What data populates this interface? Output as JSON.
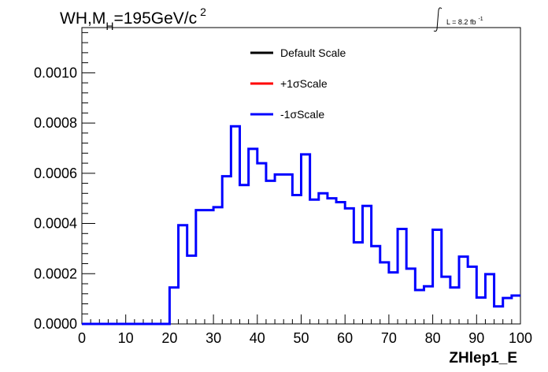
{
  "chart_data": {
    "type": "line",
    "title": {
      "main": "WH,M",
      "sub": "H",
      "rest": "=195GeV/c",
      "sup": "2"
    },
    "luminosity": {
      "text": "L = 8.2 fb",
      "sup": "-1"
    },
    "xlabel": "ZHlep1_E",
    "ylabel": "",
    "xlim": [
      0,
      100
    ],
    "ylim": [
      0,
      0.00118
    ],
    "x_ticks": [
      "0",
      "10",
      "20",
      "30",
      "40",
      "50",
      "60",
      "70",
      "80",
      "90",
      "100"
    ],
    "y_ticks": [
      "0.0000",
      "0.0002",
      "0.0004",
      "0.0006",
      "0.0008",
      "0.0010"
    ],
    "legend": [
      {
        "label": "Default Scale",
        "color": "#000000"
      },
      {
        "label": "+1σScale",
        "color": "#ff0000"
      },
      {
        "label": "-1σScale",
        "color": "#0000ff"
      }
    ],
    "bin_width": 2,
    "bin_edges_start": 0,
    "series": [
      {
        "name": "-1σScale",
        "color": "#0000ff",
        "values": [
          0,
          0,
          0,
          0,
          0,
          0,
          0,
          0,
          0,
          0,
          0.000145,
          0.000393,
          0.000272,
          0.000453,
          0.000453,
          0.000465,
          0.000588,
          0.000787,
          0.000553,
          0.000697,
          0.00064,
          0.00057,
          0.000595,
          0.000595,
          0.000513,
          0.000675,
          0.000495,
          0.00052,
          0.0005,
          0.000485,
          0.00046,
          0.000325,
          0.00047,
          0.00031,
          0.000245,
          0.000205,
          0.000378,
          0.00022,
          0.000135,
          0.00015,
          0.000375,
          0.000188,
          0.000145,
          0.000268,
          0.000228,
          0.000105,
          0.000198,
          7e-05,
          0.000103,
          0.000113
        ]
      }
    ]
  }
}
